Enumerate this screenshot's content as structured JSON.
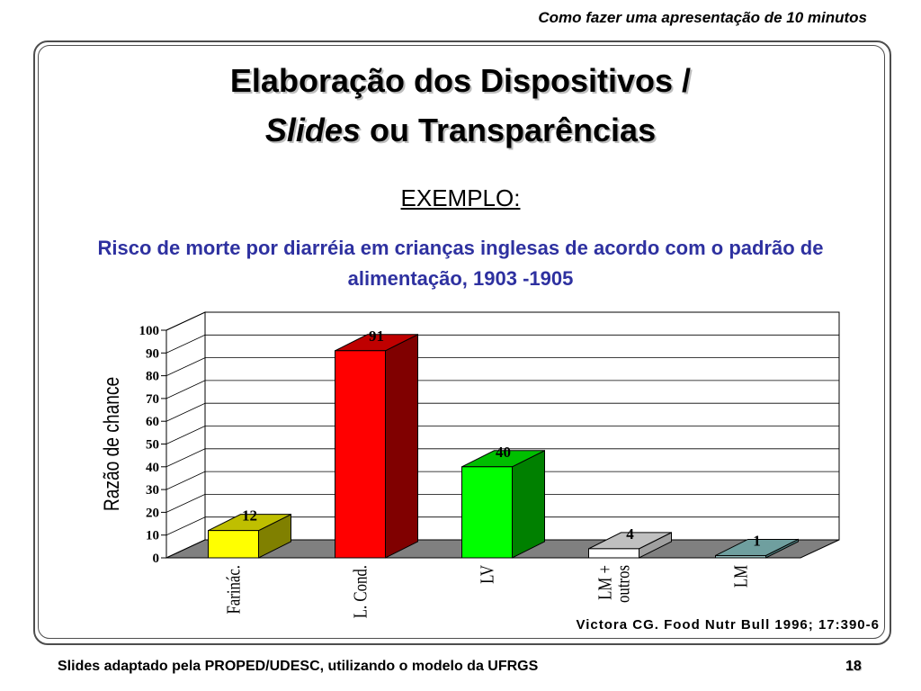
{
  "header": {
    "text": "Como fazer uma apresentação de 10 minutos"
  },
  "title": {
    "line1": "Elaboração dos Dispositivos /",
    "line2_italic": "Slides",
    "line2_rest": " ou Transparências"
  },
  "exemplo": "EXEMPLO:",
  "subtitle": "Risco de morte por diarréia em crianças inglesas de acordo com o padrão de alimentação, 1903 -1905",
  "chart_data": {
    "type": "bar",
    "title": "",
    "ylabel": "Razão de chance",
    "xlabel": "",
    "ylim": [
      0,
      100
    ],
    "yticks": [
      0,
      10,
      20,
      30,
      40,
      50,
      60,
      70,
      80,
      90,
      100
    ],
    "grid": true,
    "legend": "none",
    "categories": [
      {
        "label": "Farinác.",
        "lines": [
          "Farinác."
        ]
      },
      {
        "label": "L. Cond.",
        "lines": [
          "L. Cond."
        ]
      },
      {
        "label": "LV",
        "lines": [
          "LV"
        ]
      },
      {
        "label": "LM + outros",
        "lines": [
          "LM +",
          "outros"
        ]
      },
      {
        "label": "LM",
        "lines": [
          "LM"
        ]
      }
    ],
    "values": [
      12,
      91,
      40,
      4,
      1
    ],
    "value_labels": [
      "12",
      "91",
      "40",
      "4",
      "1"
    ],
    "colors": {
      "front": [
        "#ffff00",
        "#ff0000",
        "#00ff00",
        "#ffffff",
        "#8fb7b7"
      ],
      "top": [
        "#bfbf00",
        "#bf0000",
        "#00bf00",
        "#c0c0c0",
        "#6f9f9f"
      ],
      "side": [
        "#808000",
        "#800000",
        "#008000",
        "#a0a0a0",
        "#4f7f7f"
      ],
      "floor": "#808080"
    }
  },
  "source": "Victora CG. Food Nutr Bull 1996; 17:390-6",
  "footer": {
    "text": "Slides adaptado pela PROPED/UDESC, utilizando o modelo da UFRGS",
    "page": "18"
  }
}
